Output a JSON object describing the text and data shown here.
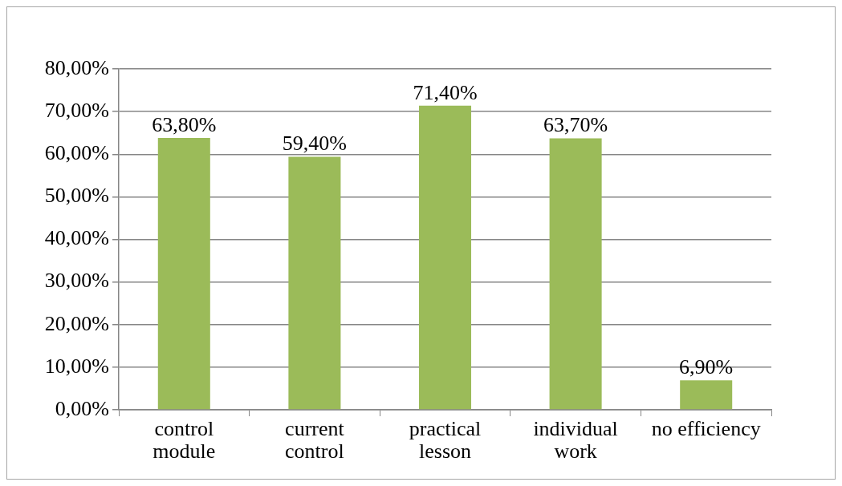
{
  "chart_data": {
    "type": "bar",
    "categories": [
      "control module",
      "current control",
      "practical lesson",
      "individual work",
      "no efficiency"
    ],
    "values": [
      63.8,
      59.4,
      71.4,
      63.7,
      6.9
    ],
    "value_labels": [
      "63,80%",
      "59,40%",
      "71,40%",
      "63,70%",
      "6,90%"
    ],
    "color": "#9bbb59",
    "ylim": [
      0,
      80
    ],
    "yticks": [
      {
        "value": 0,
        "label": "0,00%"
      },
      {
        "value": 10,
        "label": "10,00%"
      },
      {
        "value": 20,
        "label": "20,00%"
      },
      {
        "value": 30,
        "label": "30,00%"
      },
      {
        "value": 40,
        "label": "40,00%"
      },
      {
        "value": 50,
        "label": "50,00%"
      },
      {
        "value": 60,
        "label": "60,00%"
      },
      {
        "value": 70,
        "label": "70,00%"
      },
      {
        "value": 80,
        "label": "80,00%"
      }
    ],
    "grid": "y"
  }
}
